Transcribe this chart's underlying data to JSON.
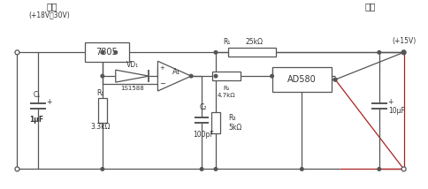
{
  "bg_color": "#ffffff",
  "input_label": "输入",
  "input_voltage": "(+18V～30V)",
  "output_label": "输出",
  "output_voltage": "(+15V)",
  "ic_7805": "7805",
  "ic_ad580": "AD580",
  "diode_label": "VD₁",
  "diode_part": "1S1588",
  "op_amp_label": "A₁",
  "c1_label": "C₁",
  "c1_val": "1μF",
  "c2_label": "C₂",
  "c2_val": "100pF",
  "c3_val": "10μF",
  "r1_label": "R₁",
  "r1_val": "3.3kΩ",
  "r2_label": "R₂",
  "r2_val": "4.7kΩ",
  "r3_label": "R₃",
  "r3_val": "5kΩ",
  "r4_label": "R₁",
  "r4_val": "25kΩ",
  "line_color": "#555555",
  "text_color": "#333333",
  "red_line_color": "#aa2222"
}
